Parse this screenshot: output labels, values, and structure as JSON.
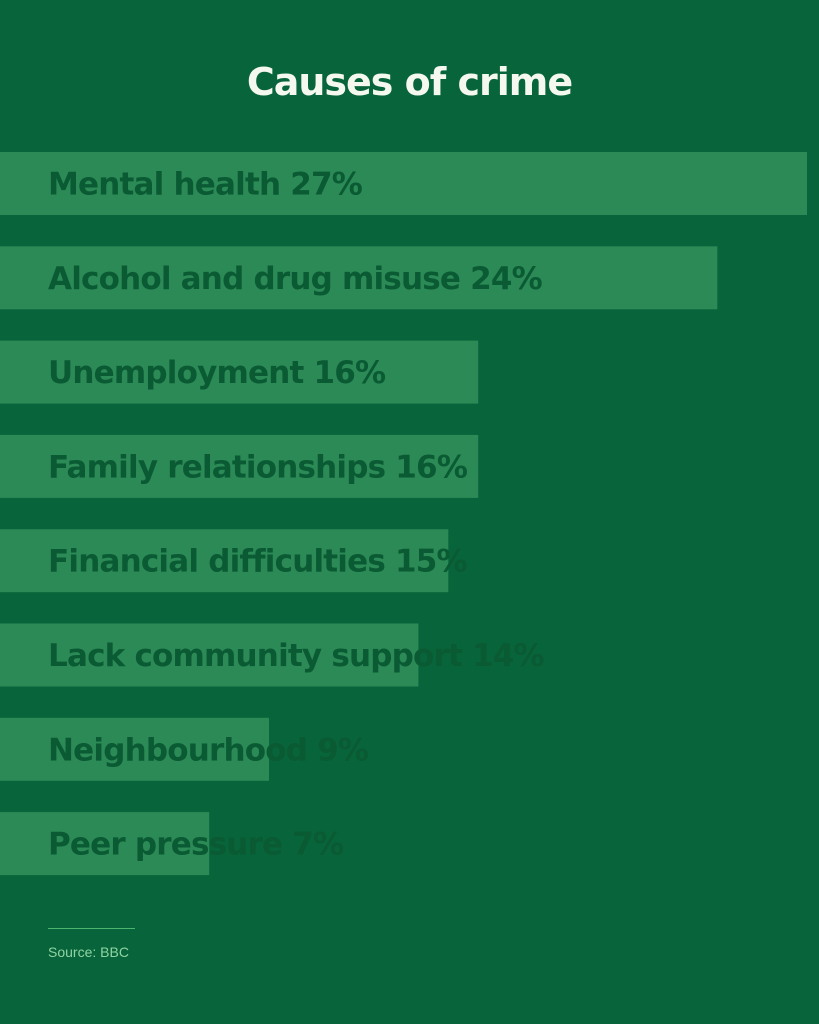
{
  "chart_data": {
    "type": "bar",
    "orientation": "horizontal",
    "title": "Causes of crime",
    "categories": [
      "Mental health",
      "Alcohol and drug misuse",
      "Unemployment",
      "Family relationships",
      "Financial difficulties",
      "Lack community support",
      "Neighbourhood",
      "Peer pressure"
    ],
    "values": [
      27,
      24,
      16,
      16,
      15,
      14,
      9,
      7
    ],
    "labels": [
      "Mental health 27%",
      "Alcohol and drug misuse 24%",
      "Unemployment 16%",
      "Family relationships 16%",
      "Financial difficulties 15%",
      "Lack community support 14%",
      "Neighbourhood 9%",
      "Peer pressure  7%"
    ],
    "unit": "%",
    "xlim": [
      0,
      27
    ],
    "grid": false
  },
  "source": "Source: BBC",
  "colors": {
    "background": "#08643a",
    "bar": "#2b8a55",
    "bar_label": "#0a5a34",
    "title": "#f4f8ee",
    "source": "#8fd4a3",
    "rule": "#4bb56f"
  }
}
